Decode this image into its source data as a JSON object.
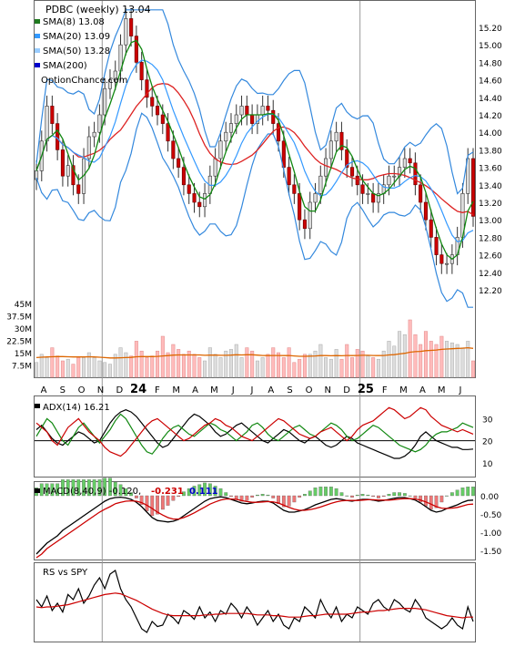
{
  "chart_data": [
    {
      "type": "candlestick",
      "panel": "price",
      "title": "PDBC (weekly) 13.04",
      "watermark": "OptionChance.com",
      "legend": [
        {
          "label": "SMA(8) 13.08",
          "color": "#1f7a1f"
        },
        {
          "label": "SMA(20) 13.09",
          "color": "#3399ff"
        },
        {
          "label": "SMA(50) 13.28",
          "color": "#99ccff"
        },
        {
          "label": "SMA(200)",
          "color": "#0000cc"
        }
      ],
      "ylim": [
        12.0,
        15.4
      ],
      "yticks": [
        "15.20",
        "15.00",
        "14.80",
        "14.60",
        "14.40",
        "14.20",
        "14.00",
        "13.80",
        "13.60",
        "13.40",
        "13.20",
        "13.00",
        "12.80",
        "12.60",
        "12.40",
        "12.20"
      ],
      "colors": {
        "up": "#dddddd",
        "down": "#cc0000",
        "up_outline": "#333333",
        "bb": "#3388dd",
        "bb_flat": "#eeee00",
        "sma50": "#dd2222",
        "sma8": "#118811"
      },
      "close": [
        13.56,
        13.9,
        14.3,
        14.1,
        13.8,
        13.5,
        13.62,
        13.4,
        13.3,
        13.7,
        13.95,
        14.0,
        14.2,
        14.5,
        14.6,
        14.7,
        15.0,
        15.3,
        15.1,
        14.8,
        14.6,
        14.4,
        14.3,
        14.2,
        14.1,
        13.9,
        13.7,
        13.6,
        13.4,
        13.3,
        13.2,
        13.15,
        13.3,
        13.5,
        13.7,
        13.9,
        14.0,
        14.1,
        14.2,
        14.3,
        14.2,
        14.1,
        14.2,
        14.3,
        14.25,
        14.1,
        13.9,
        13.6,
        13.4,
        13.3,
        13.0,
        12.9,
        13.2,
        13.3,
        13.5,
        13.7,
        13.9,
        14.0,
        13.8,
        13.6,
        13.5,
        13.4,
        13.3,
        13.3,
        13.2,
        13.3,
        13.4,
        13.5,
        13.5,
        13.6,
        13.7,
        13.65,
        13.4,
        13.2,
        13.0,
        12.8,
        12.6,
        12.5,
        12.5,
        12.6,
        12.8,
        13.3,
        13.7,
        13.04
      ]
    },
    {
      "type": "bar",
      "panel": "volume",
      "ylabels": [
        "45M",
        "37.5M",
        "30M",
        "22.5M",
        "15M",
        "7.5M"
      ],
      "ylim": [
        0,
        45000000
      ],
      "colors": {
        "up": "#dddddd",
        "down": "#ffbbbb",
        "avg": "#dd6600"
      },
      "values": [
        9,
        14,
        12,
        18,
        13,
        10,
        11,
        8,
        12,
        12,
        15,
        12,
        10,
        9,
        8,
        14,
        18,
        15,
        13,
        22,
        16,
        12,
        13,
        16,
        25,
        15,
        20,
        17,
        14,
        16,
        14,
        12,
        10,
        18,
        14,
        12,
        16,
        17,
        20,
        12,
        18,
        16,
        10,
        12,
        14,
        18,
        15,
        12,
        18,
        9,
        11,
        14,
        14,
        16,
        20,
        12,
        11,
        17,
        11,
        20,
        12,
        17,
        16,
        13,
        12,
        11,
        16,
        22,
        19,
        28,
        26,
        35,
        26,
        20,
        28,
        22,
        20,
        25,
        22,
        21,
        20,
        18,
        22,
        10
      ],
      "avg": [
        12.0,
        12.2,
        12.4,
        12.5,
        12.6,
        12.6,
        12.5,
        12.4,
        12.4,
        12.4,
        12.5,
        12.4,
        12.2,
        12.0,
        11.8,
        11.8,
        11.9,
        12.0,
        12.1,
        12.5,
        12.6,
        12.6,
        12.6,
        12.7,
        13.0,
        13.2,
        13.5,
        13.6,
        13.6,
        13.6,
        13.6,
        13.6,
        13.4,
        13.5,
        13.5,
        13.4,
        13.4,
        13.5,
        13.7,
        13.6,
        13.7,
        13.7,
        13.5,
        13.3,
        13.2,
        13.3,
        13.3,
        13.2,
        13.3,
        13.0,
        12.8,
        12.8,
        12.9,
        13.0,
        13.2,
        13.2,
        13.1,
        13.2,
        13.1,
        13.3,
        13.2,
        13.3,
        13.4,
        13.4,
        13.3,
        13.2,
        13.3,
        13.6,
        13.8,
        14.2,
        14.6,
        15.3,
        15.6,
        15.8,
        16.2,
        16.4,
        16.6,
        17.0,
        17.2,
        17.4,
        17.6,
        17.7,
        18.0,
        17.6
      ]
    },
    {
      "type": "line",
      "panel": "adx",
      "title": "ADX(14) 16.21",
      "ylim": [
        5,
        38
      ],
      "yticks": [
        "30",
        "20",
        "10"
      ],
      "series": [
        {
          "name": "ADX",
          "color": "#000000",
          "values": [
            25,
            27,
            24,
            21,
            19,
            18,
            20,
            22,
            24,
            23,
            21,
            19,
            20,
            24,
            28,
            31,
            33,
            34,
            33,
            31,
            28,
            25,
            22,
            19,
            17,
            18,
            21,
            24,
            27,
            30,
            32,
            31,
            29,
            27,
            24,
            22,
            23,
            25,
            27,
            28,
            26,
            24,
            22,
            20,
            19,
            21,
            23,
            25,
            24,
            22,
            20,
            19,
            21,
            22,
            20,
            18,
            17,
            18,
            20,
            22,
            21,
            19,
            18,
            17,
            16,
            15,
            14,
            13,
            12,
            12,
            13,
            15,
            18,
            22,
            24,
            22,
            20,
            19,
            18,
            17,
            17,
            16,
            16,
            16.21
          ]
        },
        {
          "name": "+DI",
          "color": "#118811",
          "values": [
            22,
            26,
            30,
            28,
            24,
            20,
            18,
            22,
            26,
            28,
            25,
            22,
            19,
            22,
            25,
            29,
            32,
            30,
            26,
            22,
            18,
            15,
            14,
            17,
            21,
            24,
            26,
            27,
            25,
            23,
            22,
            24,
            26,
            28,
            27,
            25,
            24,
            22,
            20,
            22,
            24,
            27,
            28,
            26,
            23,
            21,
            20,
            22,
            24,
            26,
            27,
            25,
            23,
            22,
            24,
            26,
            28,
            27,
            25,
            22,
            20,
            21,
            23,
            25,
            27,
            26,
            24,
            22,
            20,
            18,
            17,
            16,
            15,
            16,
            18,
            21,
            23,
            24,
            24,
            25,
            26,
            28,
            27,
            26
          ]
        },
        {
          "name": "-DI",
          "color": "#cc0000",
          "values": [
            28,
            26,
            24,
            20,
            18,
            22,
            26,
            28,
            30,
            27,
            24,
            22,
            20,
            17,
            15,
            14,
            13,
            15,
            18,
            21,
            24,
            27,
            29,
            30,
            28,
            26,
            24,
            22,
            20,
            21,
            23,
            25,
            27,
            28,
            30,
            29,
            27,
            26,
            24,
            22,
            21,
            20,
            22,
            24,
            26,
            28,
            30,
            29,
            27,
            25,
            23,
            22,
            21,
            22,
            24,
            25,
            26,
            24,
            22,
            20,
            22,
            25,
            27,
            28,
            29,
            31,
            33,
            35,
            34,
            32,
            30,
            31,
            33,
            35,
            34,
            31,
            29,
            27,
            26,
            25,
            24,
            25,
            24,
            23
          ]
        }
      ]
    },
    {
      "type": "line",
      "panel": "macd",
      "title": "MACD(8,40,9) -0.120,",
      "annotations": [
        {
          "text": "-0.231",
          "color": "#cc0000"
        },
        {
          "text": "0.111",
          "color": "#0000cc"
        }
      ],
      "ylim": [
        -1.7,
        0.2
      ],
      "yticks": [
        "0.00",
        "-0.50",
        "-1.00",
        "-1.50"
      ],
      "series": [
        {
          "name": "MACD",
          "color": "#000000",
          "values": [
            -1.6,
            -1.45,
            -1.3,
            -1.2,
            -1.1,
            -0.95,
            -0.85,
            -0.75,
            -0.65,
            -0.55,
            -0.45,
            -0.35,
            -0.25,
            -0.15,
            -0.08,
            -0.05,
            -0.04,
            -0.06,
            -0.1,
            -0.18,
            -0.3,
            -0.45,
            -0.6,
            -0.68,
            -0.7,
            -0.72,
            -0.7,
            -0.65,
            -0.55,
            -0.45,
            -0.35,
            -0.25,
            -0.15,
            -0.08,
            -0.05,
            -0.03,
            -0.05,
            -0.1,
            -0.15,
            -0.2,
            -0.22,
            -0.2,
            -0.17,
            -0.15,
            -0.15,
            -0.2,
            -0.3,
            -0.4,
            -0.45,
            -0.45,
            -0.42,
            -0.38,
            -0.32,
            -0.25,
            -0.2,
            -0.15,
            -0.1,
            -0.08,
            -0.1,
            -0.13,
            -0.15,
            -0.12,
            -0.1,
            -0.1,
            -0.12,
            -0.15,
            -0.13,
            -0.1,
            -0.07,
            -0.05,
            -0.05,
            -0.08,
            -0.12,
            -0.2,
            -0.3,
            -0.4,
            -0.45,
            -0.42,
            -0.35,
            -0.3,
            -0.25,
            -0.18,
            -0.13,
            -0.12
          ]
        },
        {
          "name": "Signal",
          "color": "#cc0000",
          "values": [
            -1.7,
            -1.6,
            -1.45,
            -1.35,
            -1.25,
            -1.15,
            -1.05,
            -0.95,
            -0.85,
            -0.75,
            -0.65,
            -0.55,
            -0.45,
            -0.37,
            -0.3,
            -0.22,
            -0.18,
            -0.15,
            -0.14,
            -0.15,
            -0.19,
            -0.26,
            -0.35,
            -0.45,
            -0.53,
            -0.6,
            -0.64,
            -0.64,
            -0.6,
            -0.54,
            -0.47,
            -0.39,
            -0.31,
            -0.23,
            -0.17,
            -0.12,
            -0.09,
            -0.09,
            -0.1,
            -0.13,
            -0.16,
            -0.18,
            -0.18,
            -0.17,
            -0.16,
            -0.17,
            -0.2,
            -0.26,
            -0.32,
            -0.37,
            -0.4,
            -0.4,
            -0.38,
            -0.35,
            -0.31,
            -0.26,
            -0.21,
            -0.17,
            -0.14,
            -0.13,
            -0.13,
            -0.13,
            -0.12,
            -0.11,
            -0.11,
            -0.12,
            -0.12,
            -0.12,
            -0.11,
            -0.09,
            -0.08,
            -0.08,
            -0.09,
            -0.12,
            -0.17,
            -0.23,
            -0.3,
            -0.34,
            -0.35,
            -0.34,
            -0.32,
            -0.28,
            -0.24,
            -0.231
          ]
        }
      ],
      "colors": {
        "hist_up": "#66cc66",
        "hist_down": "#ee7777"
      }
    },
    {
      "type": "line",
      "panel": "rs",
      "title": "RS vs SPY",
      "series": [
        {
          "name": "RS",
          "color": "#000000",
          "values": [
            0.55,
            0.45,
            0.6,
            0.4,
            0.5,
            0.38,
            0.62,
            0.55,
            0.7,
            0.5,
            0.6,
            0.75,
            0.85,
            0.7,
            0.9,
            0.95,
            0.7,
            0.55,
            0.45,
            0.3,
            0.15,
            0.1,
            0.25,
            0.18,
            0.2,
            0.35,
            0.3,
            0.22,
            0.4,
            0.35,
            0.28,
            0.45,
            0.3,
            0.38,
            0.25,
            0.4,
            0.35,
            0.5,
            0.42,
            0.3,
            0.45,
            0.35,
            0.2,
            0.3,
            0.4,
            0.25,
            0.35,
            0.2,
            0.15,
            0.3,
            0.25,
            0.45,
            0.38,
            0.3,
            0.55,
            0.4,
            0.3,
            0.45,
            0.25,
            0.35,
            0.3,
            0.45,
            0.4,
            0.35,
            0.5,
            0.55,
            0.45,
            0.4,
            0.55,
            0.5,
            0.42,
            0.38,
            0.55,
            0.45,
            0.3,
            0.25,
            0.2,
            0.15,
            0.2,
            0.3,
            0.2,
            0.15,
            0.45,
            0.25
          ]
        },
        {
          "name": "RS avg",
          "color": "#cc0000",
          "values": [
            0.45,
            0.44,
            0.45,
            0.45,
            0.46,
            0.47,
            0.48,
            0.5,
            0.52,
            0.54,
            0.56,
            0.58,
            0.6,
            0.62,
            0.63,
            0.64,
            0.63,
            0.6,
            0.57,
            0.54,
            0.5,
            0.46,
            0.42,
            0.39,
            0.36,
            0.34,
            0.33,
            0.33,
            0.33,
            0.33,
            0.33,
            0.33,
            0.34,
            0.34,
            0.35,
            0.35,
            0.36,
            0.36,
            0.36,
            0.36,
            0.36,
            0.35,
            0.34,
            0.34,
            0.34,
            0.33,
            0.33,
            0.32,
            0.31,
            0.31,
            0.31,
            0.32,
            0.33,
            0.33,
            0.34,
            0.35,
            0.35,
            0.35,
            0.35,
            0.35,
            0.36,
            0.37,
            0.38,
            0.38,
            0.39,
            0.4,
            0.4,
            0.41,
            0.42,
            0.43,
            0.43,
            0.43,
            0.43,
            0.42,
            0.41,
            0.39,
            0.37,
            0.35,
            0.33,
            0.32,
            0.31,
            0.3,
            0.31,
            0.31
          ]
        }
      ]
    }
  ],
  "x_axis": {
    "labels": [
      "A",
      "S",
      "O",
      "N",
      "D",
      "24",
      "F",
      "M",
      "A",
      "M",
      "J",
      "J",
      "A",
      "S",
      "O",
      "N",
      "D",
      "25",
      "F",
      "M",
      "A",
      "M",
      "J"
    ],
    "bold_labels": [
      "24",
      "25"
    ]
  }
}
